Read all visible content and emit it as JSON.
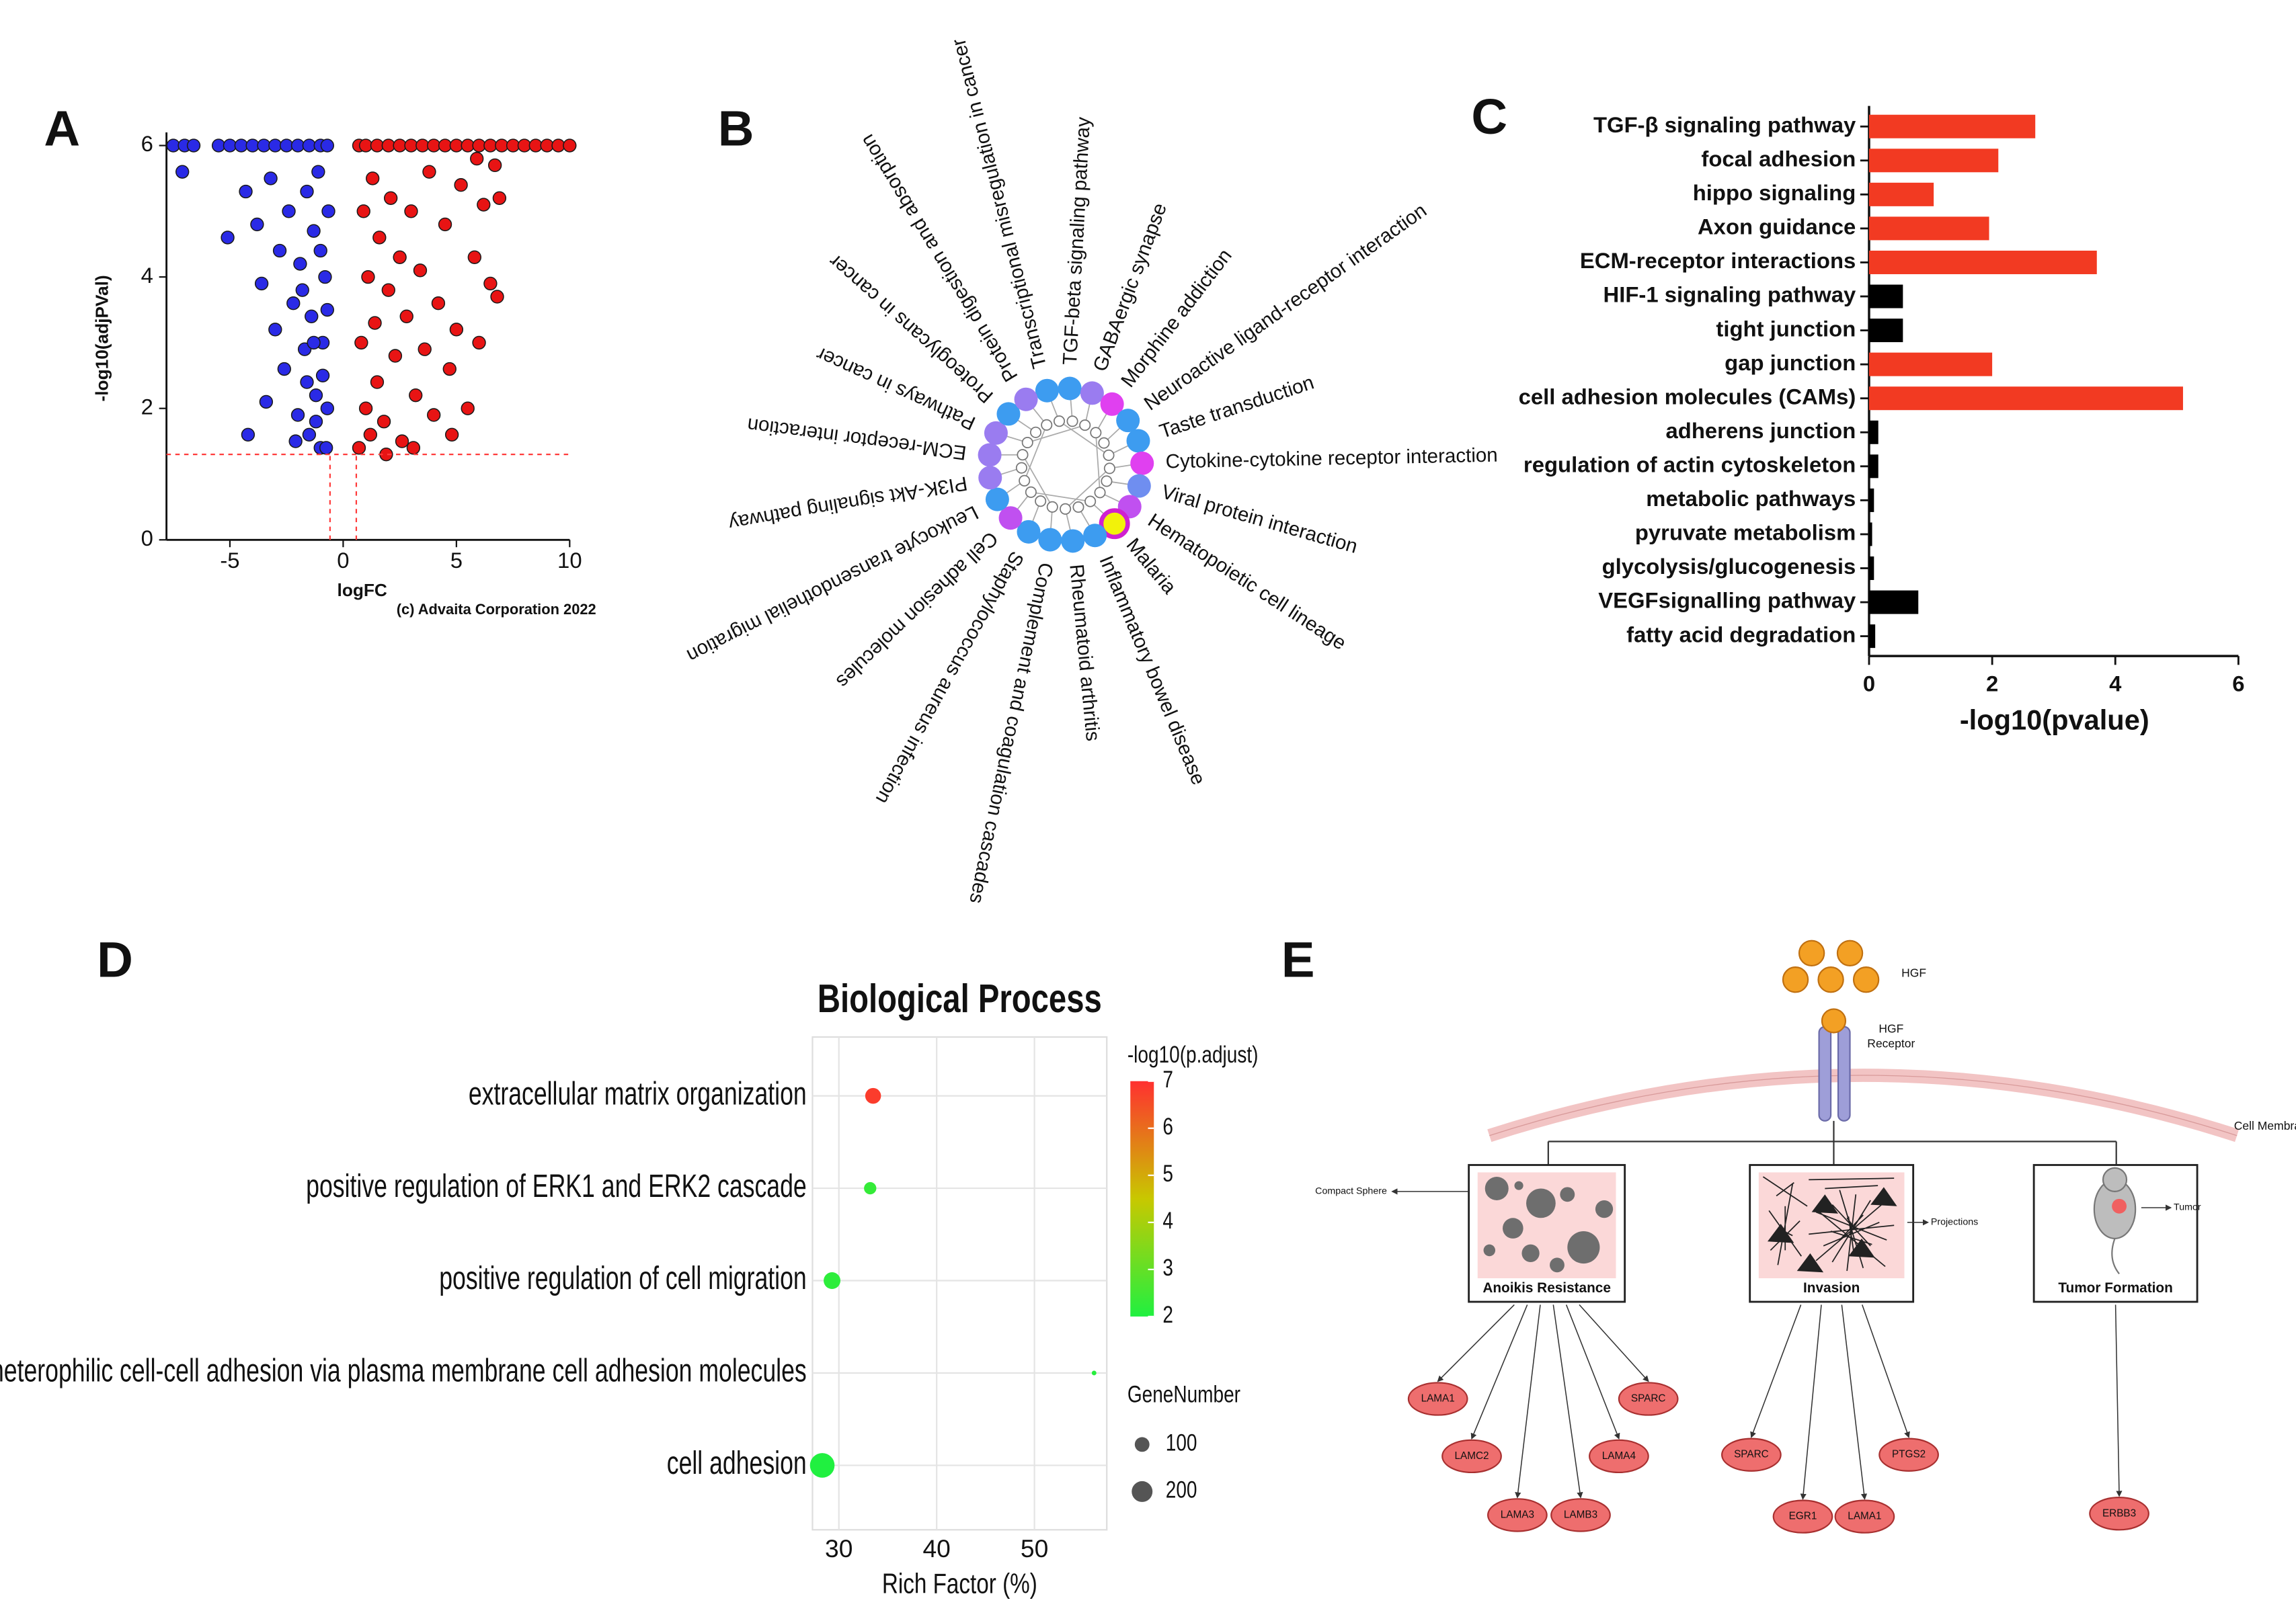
{
  "panel_labels": [
    "A",
    "B",
    "C",
    "D",
    "E"
  ],
  "chart_data": [
    {
      "type": "scatter",
      "xlabel": "logFC",
      "ylabel": "-log10(adjPVal)",
      "annotation": "(c) Advaita Corporation 2022",
      "xlim": [
        -7.8,
        10
      ],
      "xticks": [
        -5,
        0,
        5,
        10
      ],
      "ylim": [
        0,
        6.2
      ],
      "yticks": [
        0,
        2,
        4,
        6
      ],
      "thresholds": {
        "hline": 1.3,
        "vlines": [
          -0.58,
          0.58
        ],
        "color": "#ff3a3a"
      },
      "series": [
        {
          "color": "#2a2ae6",
          "x": [
            -7.5,
            -7,
            -6.6,
            -5.5,
            -5,
            -4.5,
            -4,
            -3.5,
            -3,
            -2.5,
            -2,
            -1.5,
            -1,
            -0.7,
            -7.1,
            -5.1,
            -4.3,
            -3.8,
            -3.6,
            -3.2,
            -3,
            -2.8,
            -2.6,
            -2.4,
            -2.2,
            -2,
            -1.9,
            -1.7,
            -1.6,
            -1.5,
            -1.4,
            -1.3,
            -1.2,
            -1.1,
            -1,
            -0.9,
            -0.8,
            -0.7,
            -0.65,
            -4.2,
            -3.4,
            -2.1,
            -1.8,
            -1.2,
            -0.9,
            -0.7,
            -0.75,
            -1,
            -1.3,
            -1.6
          ],
          "y": [
            6,
            6,
            6,
            6,
            6,
            6,
            6,
            6,
            6,
            6,
            6,
            6,
            6,
            6,
            5.6,
            4.6,
            5.3,
            4.8,
            3.9,
            5.5,
            3.2,
            4.4,
            2.6,
            5,
            3.6,
            1.9,
            4.2,
            2.9,
            5.3,
            1.6,
            3.4,
            4.7,
            2.2,
            5.6,
            1.4,
            3,
            4,
            2,
            5,
            1.6,
            2.1,
            1.5,
            3.8,
            1.8,
            2.5,
            3.5,
            1.4,
            4.4,
            3,
            2.4
          ]
        },
        {
          "color": "#e81414",
          "x": [
            0.7,
            1,
            1.5,
            2,
            2.5,
            3,
            3.5,
            4,
            4.5,
            5,
            5.5,
            6,
            6.5,
            7,
            7.5,
            8,
            8.5,
            9,
            9.5,
            10,
            0.7,
            0.8,
            0.9,
            1,
            1.1,
            1.2,
            1.3,
            1.4,
            1.5,
            1.6,
            1.8,
            2,
            2.1,
            2.3,
            2.5,
            2.6,
            2.8,
            3,
            3.2,
            3.4,
            3.6,
            3.8,
            4,
            4.2,
            4.5,
            4.7,
            5,
            5.2,
            5.5,
            5.8,
            6,
            6.2,
            6.5,
            6.8,
            6.9,
            4.8,
            3.1,
            1.9,
            6.7,
            5.9
          ],
          "y": [
            6,
            6,
            6,
            6,
            6,
            6,
            6,
            6,
            6,
            6,
            6,
            6,
            6,
            6,
            6,
            6,
            6,
            6,
            6,
            6,
            1.4,
            3,
            5,
            2,
            4,
            1.6,
            5.5,
            3.3,
            2.4,
            4.6,
            1.8,
            3.8,
            5.2,
            2.8,
            4.3,
            1.5,
            3.4,
            5,
            2.2,
            4.1,
            2.9,
            5.6,
            1.9,
            3.6,
            4.8,
            2.6,
            3.2,
            5.4,
            2,
            4.3,
            3,
            5.1,
            3.9,
            3.7,
            5.2,
            1.6,
            1.4,
            1.3,
            5.7,
            5.8
          ]
        }
      ]
    },
    {
      "type": "bar",
      "orientation": "horizontal",
      "xlabel": "-log10(pvalue)",
      "xlim": [
        0,
        6
      ],
      "xticks": [
        0,
        2,
        4,
        6
      ],
      "categories": [
        "TGF-β signaling pathway",
        "focal adhesion",
        "hippo signaling",
        "Axon guidance",
        "ECM-receptor interactions",
        "HIF-1 signaling pathway",
        "tight junction",
        "gap junction",
        "cell adhesion molecules (CAMs)",
        "adherens junction",
        "regulation of actin cytoskeleton",
        "metabolic pathways",
        "pyruvate metabolism",
        "glycolysis/glucogenesis",
        "VEGFsignalling pathway",
        "fatty acid degradation"
      ],
      "values": [
        2.7,
        2.1,
        1.05,
        1.95,
        3.7,
        0.55,
        0.55,
        2.0,
        5.1,
        0.15,
        0.15,
        0.08,
        0.05,
        0.08,
        0.8,
        0.1
      ],
      "colors": [
        "#f23a22",
        "#f23a22",
        "#f23a22",
        "#f23a22",
        "#f23a22",
        "#000000",
        "#000000",
        "#f23a22",
        "#f23a22",
        "#000000",
        "#000000",
        "#000000",
        "#000000",
        "#000000",
        "#000000",
        "#000000"
      ]
    },
    {
      "type": "dot",
      "title": "Biological Process",
      "xlabel": "Rich Factor (%)",
      "xlim": [
        27.3,
        57.4
      ],
      "xticks": [
        30,
        40,
        50
      ],
      "grid": true,
      "categories": [
        "extracellular matrix organization",
        "positive regulation of ERK1 and ERK2 cascade",
        "positive regulation of cell migration",
        "heterophilic cell-cell adhesion via plasma membrane cell adhesion molecules",
        "cell adhesion"
      ],
      "values": [
        33.5,
        33.2,
        29.3,
        56.1,
        28.3
      ],
      "color_values": [
        6.8,
        2.3,
        2.2,
        2.1,
        2.0
      ],
      "sizes": [
        115,
        70,
        130,
        10,
        280
      ],
      "color_title": "-log10(p.adjust)",
      "clim": [
        2,
        7
      ],
      "cticks": [
        2,
        3,
        4,
        5,
        6,
        7
      ],
      "colormap": [
        "#20f040",
        "#c8c800",
        "#ff3030"
      ],
      "size_title": "GeneNumber",
      "size_legend": [
        100,
        200
      ]
    }
  ],
  "network": {
    "nodes": [
      {
        "label": "Transcriptional misregulation in cancer",
        "color": "#3d9cf0"
      },
      {
        "label": "TGF-beta signaling pathway",
        "color": "#3d9cf0"
      },
      {
        "label": "GABAergic synapse",
        "color": "#9a7cf0"
      },
      {
        "label": "Morphine addiction",
        "color": "#e040f0"
      },
      {
        "label": "Neuroactive ligand-receptor interaction",
        "color": "#3d9cf0"
      },
      {
        "label": "Taste transduction",
        "color": "#3d9cf0"
      },
      {
        "label": "Cytokine-cytokine receptor interaction",
        "color": "#e040f0"
      },
      {
        "label": "Viral protein interaction",
        "color": "#6f8ef0"
      },
      {
        "label": "Hematopoietic cell lineage",
        "color": "#c050f0"
      },
      {
        "label": "Malaria",
        "color": "#f2f20a",
        "border": "#d020d0"
      },
      {
        "label": "Inflammatory bowel disease",
        "color": "#3d9cf0"
      },
      {
        "label": "Rheumatoid arthritis",
        "color": "#3d9cf0"
      },
      {
        "label": "Complement and coagulation cascades",
        "color": "#3d9cf0"
      },
      {
        "label": "Staphylococcus aureus infection",
        "color": "#3d9cf0"
      },
      {
        "label": "Cell adhesion molecules",
        "color": "#c050f0"
      },
      {
        "label": "Leukocyte transendothelial migration",
        "color": "#3d9cf0"
      },
      {
        "label": "PI3K-Akt signaling pathway",
        "color": "#9a7cf0"
      },
      {
        "label": "ECM-receptor interaction",
        "color": "#9a7cf0"
      },
      {
        "label": "Pathways in cancer",
        "color": "#9a7cf0"
      },
      {
        "label": "Proteoglycans in cancer",
        "color": "#3d9cf0"
      },
      {
        "label": "Protein digestion and absorption",
        "color": "#9a7cf0"
      }
    ]
  },
  "pathway_diagram": {
    "ligand": "HGF",
    "receptor": [
      "HGF",
      "Receptor"
    ],
    "membrane": "Cell Membrane",
    "outcomes": [
      {
        "title": "Anoikis Resistance",
        "callout": "Compact Sphere",
        "genes": [
          "LAMA1",
          "LAMC2",
          "LAMA3",
          "LAMB3",
          "LAMA4",
          "SPARC"
        ]
      },
      {
        "title": "Invasion",
        "callout": "Projections",
        "genes": [
          "SPARC",
          "EGR1",
          "LAMA1",
          "PTGS2"
        ]
      },
      {
        "title": "Tumor Formation",
        "callout": "Tumor",
        "genes": [
          "ERBB3"
        ]
      }
    ]
  }
}
